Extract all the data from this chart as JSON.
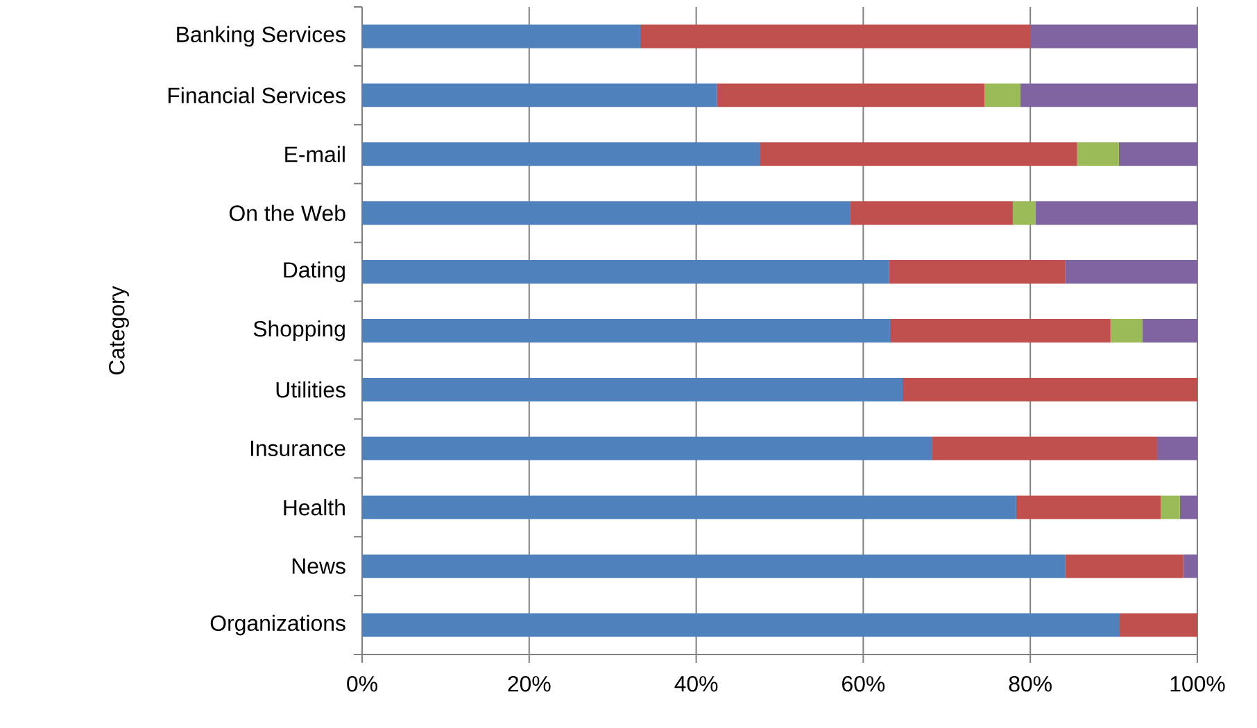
{
  "chart_data": {
    "type": "bar",
    "orientation": "horizontal",
    "stacked": true,
    "ylabel": "Category",
    "categories": [
      "Banking Services",
      "Financial Services",
      "E-mail",
      "On the Web",
      "Dating",
      "Shopping",
      "Utilities",
      "Insurance",
      "Health",
      "News",
      "Organizations"
    ],
    "series": [
      {
        "color": "#4f81bd",
        "values": [
          33.3,
          42.5,
          47.6,
          58.4,
          63.1,
          63.2,
          64.7,
          68.2,
          78.3,
          84.2,
          90.7
        ]
      },
      {
        "color": "#c0504d",
        "values": [
          46.7,
          32.0,
          38.0,
          19.5,
          21.1,
          26.4,
          35.3,
          26.9,
          17.3,
          14.1,
          9.3
        ]
      },
      {
        "color": "#9bbb59",
        "values": [
          0,
          4.3,
          5.0,
          2.7,
          0,
          3.8,
          0,
          0,
          2.3,
          0,
          0
        ]
      },
      {
        "color": "#8064a2",
        "values": [
          20.0,
          21.2,
          9.4,
          19.4,
          15.8,
          6.6,
          0,
          4.9,
          2.1,
          1.7,
          0
        ]
      }
    ],
    "xlim": [
      0,
      100
    ],
    "xticks": [
      {
        "value": 0,
        "label": "0%"
      },
      {
        "value": 20,
        "label": "20%"
      },
      {
        "value": 40,
        "label": "40%"
      },
      {
        "value": 60,
        "label": "60%"
      },
      {
        "value": 80,
        "label": "80%"
      },
      {
        "value": 100,
        "label": "100%"
      }
    ],
    "grid": "x"
  }
}
